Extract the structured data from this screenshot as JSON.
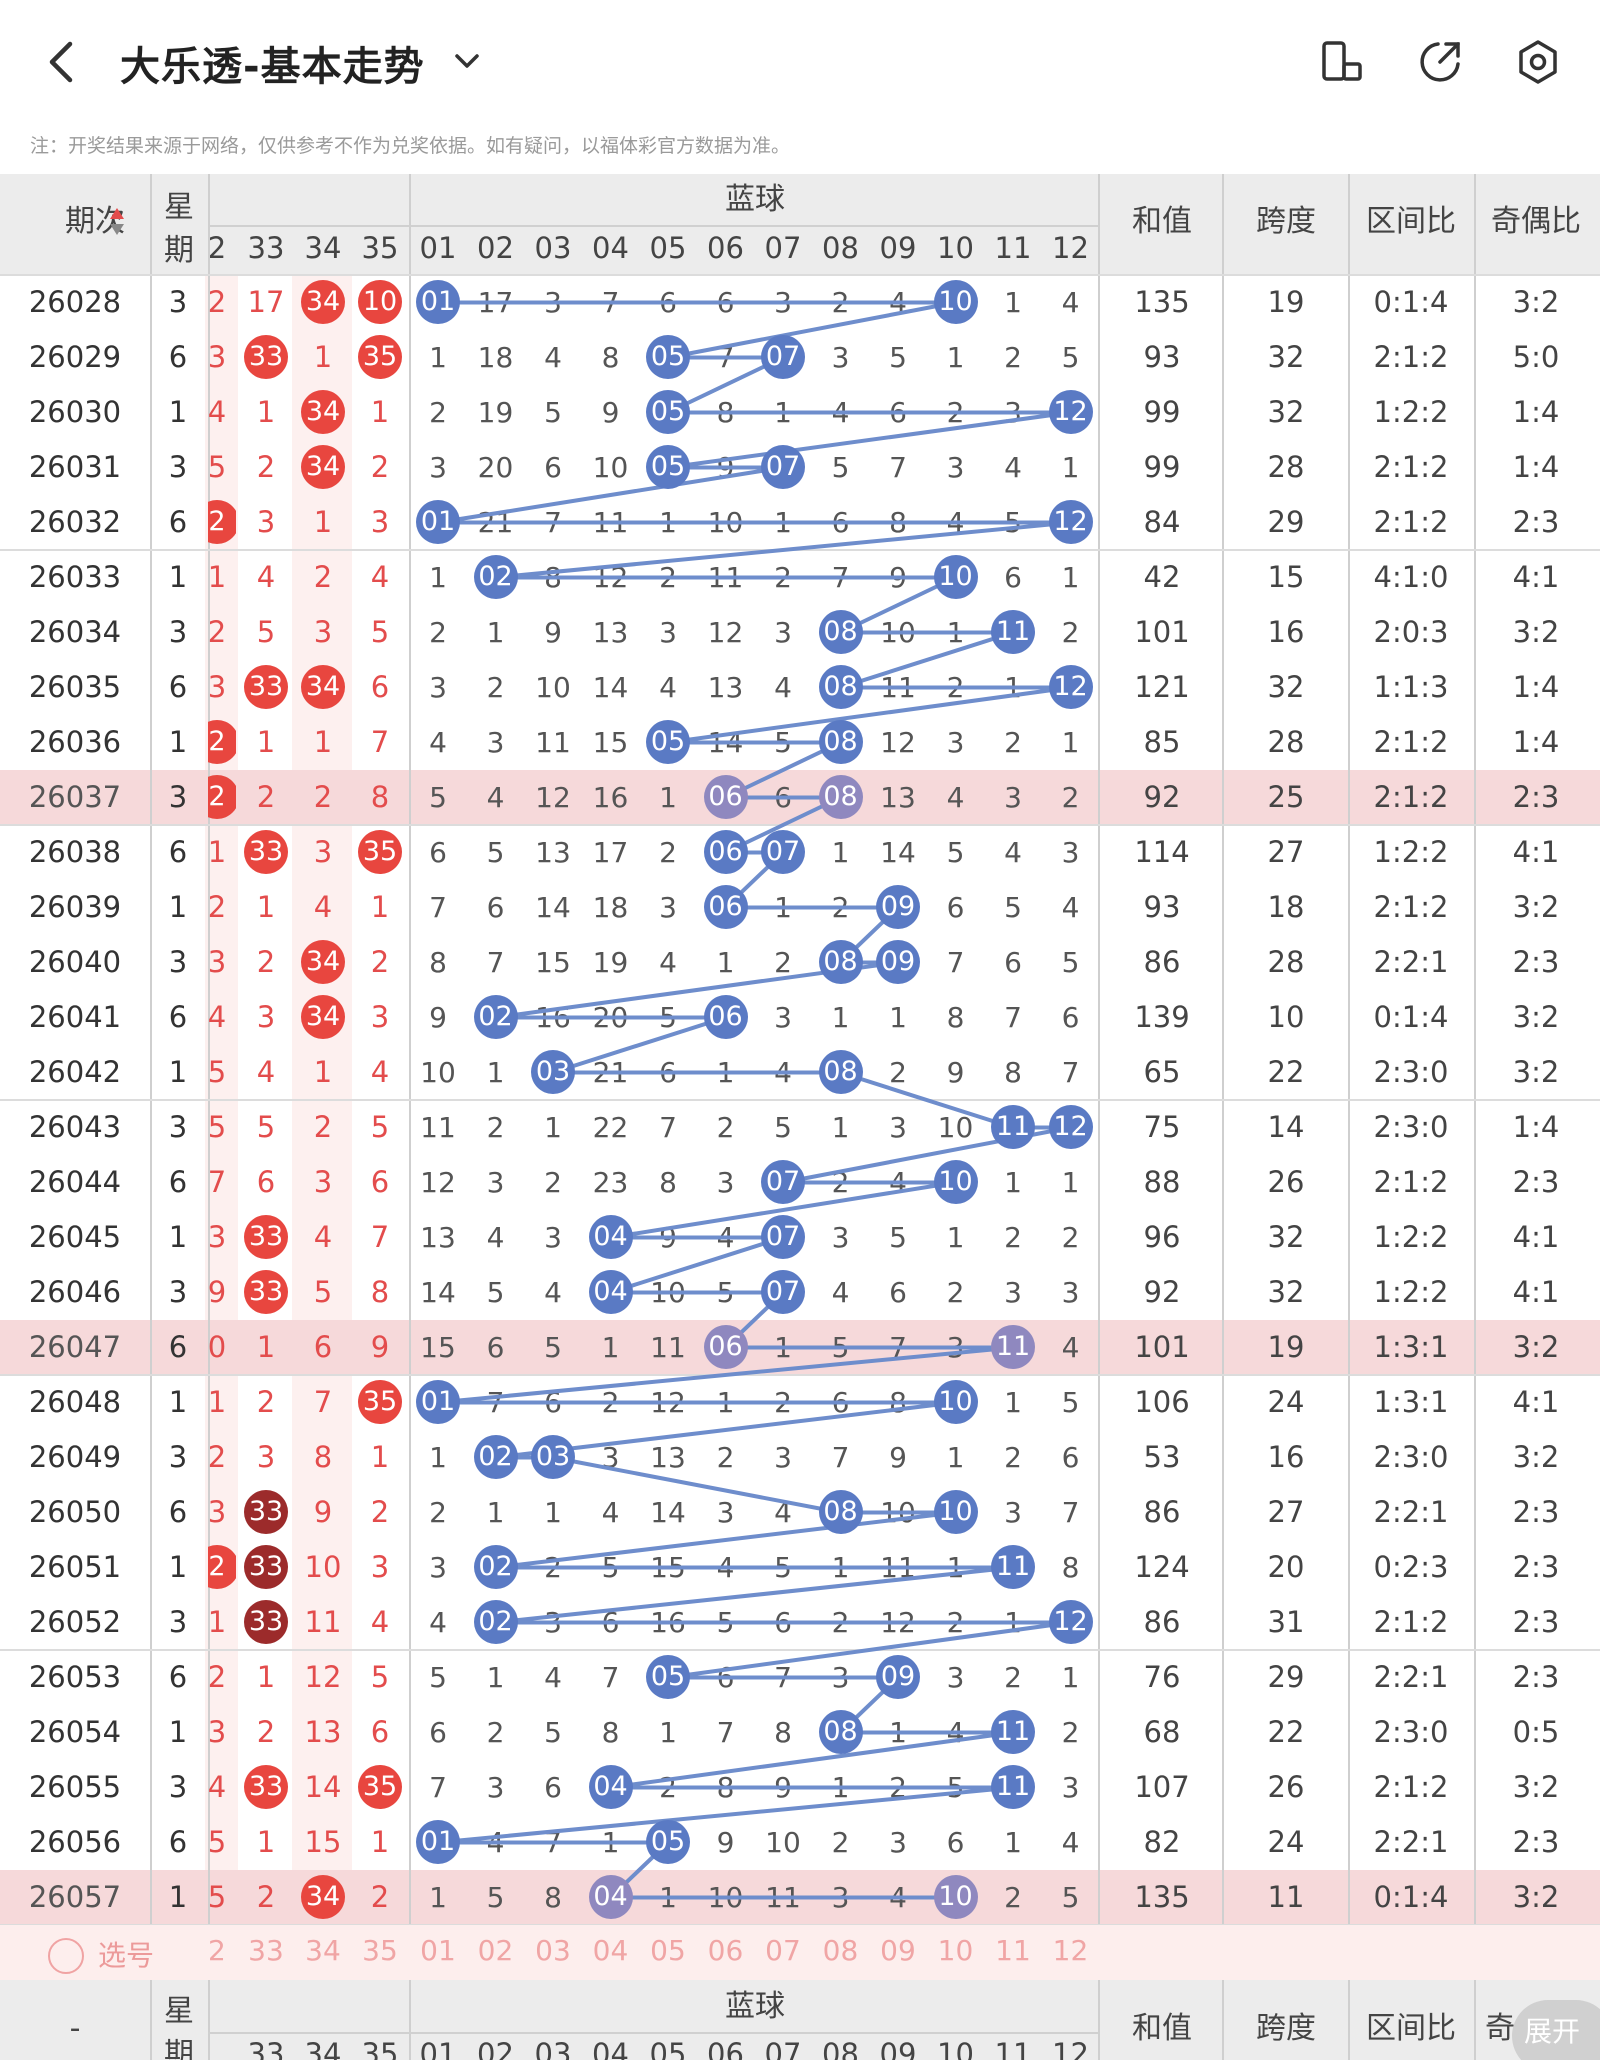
{
  "page": {
    "title": "大乐透-基本走势",
    "notice": "注：开奖结果来源于网络，仅供参考不作为兑奖依据。如有疑问，以福体彩官方数据为准。"
  },
  "icons": {
    "back": "chevron-left-icon",
    "title_dropdown": "chevron-down-icon",
    "layout": "rotate-screen-icon",
    "share": "share-icon",
    "settings": "settings-icon"
  },
  "colors": {
    "red_ball": "#e8463f",
    "dark_red_ball": "#9c2b2b",
    "blue_ball": "#5a7ac4",
    "blue_line": "#6e8dcc",
    "red_text": "#e34c4c",
    "highlight_row": "#f6d9da",
    "odd_red_col": "#fdf0ef",
    "header_bg": "#ececec"
  },
  "header": {
    "issue": "期次",
    "week": "星期",
    "blue_title": "蓝球",
    "sum": "和值",
    "span": "跨度",
    "zone_ratio": "区间比",
    "odd_even": "奇偶比",
    "red_cols": [
      "2",
      "33",
      "34",
      "35"
    ],
    "blue_cols": [
      "01",
      "02",
      "03",
      "04",
      "05",
      "06",
      "07",
      "08",
      "09",
      "10",
      "11",
      "12"
    ]
  },
  "rows": [
    {
      "issue": "26028",
      "week": "3",
      "r": [
        "2",
        "17",
        "34",
        "10"
      ],
      "b": [
        1,
        10
      ],
      "bv": [
        "01",
        "17",
        "3",
        "7",
        "6",
        "6",
        "3",
        "2",
        "4",
        "10",
        "1",
        "4"
      ],
      "sum": "135",
      "span": "19",
      "zone": "0:1:4",
      "oe": "3:2"
    },
    {
      "issue": "26029",
      "week": "6",
      "r": [
        "3",
        "33",
        "1",
        "35"
      ],
      "b": [
        5,
        7
      ],
      "bv": [
        "1",
        "18",
        "4",
        "8",
        "05",
        "7",
        "07",
        "3",
        "5",
        "1",
        "2",
        "5"
      ],
      "sum": "93",
      "span": "32",
      "zone": "2:1:2",
      "oe": "5:0"
    },
    {
      "issue": "26030",
      "week": "1",
      "r": [
        "4",
        "1",
        "34",
        "1"
      ],
      "b": [
        5,
        12
      ],
      "bv": [
        "2",
        "19",
        "5",
        "9",
        "05",
        "8",
        "1",
        "4",
        "6",
        "2",
        "3",
        "12"
      ],
      "sum": "99",
      "span": "32",
      "zone": "1:2:2",
      "oe": "1:4"
    },
    {
      "issue": "26031",
      "week": "3",
      "r": [
        "5",
        "2",
        "34",
        "2"
      ],
      "b": [
        5,
        7
      ],
      "bv": [
        "3",
        "20",
        "6",
        "10",
        "05",
        "9",
        "07",
        "5",
        "7",
        "3",
        "4",
        "1"
      ],
      "sum": "99",
      "span": "28",
      "zone": "2:1:2",
      "oe": "1:4"
    },
    {
      "issue": "26032",
      "week": "6",
      "r": [
        "2",
        "3",
        "1",
        "3"
      ],
      "b": [
        1,
        12
      ],
      "bv": [
        "01",
        "21",
        "7",
        "11",
        "1",
        "10",
        "1",
        "6",
        "8",
        "4",
        "5",
        "12"
      ],
      "sum": "84",
      "span": "29",
      "zone": "2:1:2",
      "oe": "2:3"
    },
    {
      "issue": "26033",
      "week": "1",
      "r": [
        "1",
        "4",
        "2",
        "4"
      ],
      "b": [
        2,
        10
      ],
      "bv": [
        "1",
        "02",
        "8",
        "12",
        "2",
        "11",
        "2",
        "7",
        "9",
        "10",
        "6",
        "1"
      ],
      "sum": "42",
      "span": "15",
      "zone": "4:1:0",
      "oe": "4:1"
    },
    {
      "issue": "26034",
      "week": "3",
      "r": [
        "2",
        "5",
        "3",
        "5"
      ],
      "b": [
        8,
        11
      ],
      "bv": [
        "2",
        "1",
        "9",
        "13",
        "3",
        "12",
        "3",
        "08",
        "10",
        "1",
        "11",
        "2"
      ],
      "sum": "101",
      "span": "16",
      "zone": "2:0:3",
      "oe": "3:2"
    },
    {
      "issue": "26035",
      "week": "6",
      "r": [
        "3",
        "33",
        "34",
        "6"
      ],
      "b": [
        8,
        12
      ],
      "bv": [
        "3",
        "2",
        "10",
        "14",
        "4",
        "13",
        "4",
        "08",
        "11",
        "2",
        "1",
        "12"
      ],
      "sum": "121",
      "span": "32",
      "zone": "1:1:3",
      "oe": "1:4"
    },
    {
      "issue": "26036",
      "week": "1",
      "r": [
        "2",
        "1",
        "1",
        "7"
      ],
      "b": [
        5,
        8
      ],
      "bv": [
        "4",
        "3",
        "11",
        "15",
        "05",
        "14",
        "5",
        "08",
        "12",
        "3",
        "2",
        "1"
      ],
      "sum": "85",
      "span": "28",
      "zone": "2:1:2",
      "oe": "1:4"
    },
    {
      "issue": "26037",
      "week": "3",
      "r": [
        "2",
        "2",
        "2",
        "8"
      ],
      "b": [
        6,
        8
      ],
      "bv": [
        "5",
        "4",
        "12",
        "16",
        "1",
        "06",
        "6",
        "08",
        "13",
        "4",
        "3",
        "2"
      ],
      "sum": "92",
      "span": "25",
      "zone": "2:1:2",
      "oe": "2:3"
    },
    {
      "issue": "26038",
      "week": "6",
      "r": [
        "1",
        "33",
        "3",
        "35"
      ],
      "b": [
        6,
        7
      ],
      "bv": [
        "6",
        "5",
        "13",
        "17",
        "2",
        "06",
        "07",
        "1",
        "14",
        "5",
        "4",
        "3"
      ],
      "sum": "114",
      "span": "27",
      "zone": "1:2:2",
      "oe": "4:1"
    },
    {
      "issue": "26039",
      "week": "1",
      "r": [
        "2",
        "1",
        "4",
        "1"
      ],
      "b": [
        6,
        9
      ],
      "bv": [
        "7",
        "6",
        "14",
        "18",
        "3",
        "06",
        "1",
        "2",
        "09",
        "6",
        "5",
        "4"
      ],
      "sum": "93",
      "span": "18",
      "zone": "2:1:2",
      "oe": "3:2"
    },
    {
      "issue": "26040",
      "week": "3",
      "r": [
        "3",
        "2",
        "34",
        "2"
      ],
      "b": [
        8,
        9
      ],
      "bv": [
        "8",
        "7",
        "15",
        "19",
        "4",
        "1",
        "2",
        "08",
        "09",
        "7",
        "6",
        "5"
      ],
      "sum": "86",
      "span": "28",
      "zone": "2:2:1",
      "oe": "2:3"
    },
    {
      "issue": "26041",
      "week": "6",
      "r": [
        "4",
        "3",
        "34",
        "3"
      ],
      "b": [
        2,
        6
      ],
      "bv": [
        "9",
        "02",
        "16",
        "20",
        "5",
        "06",
        "3",
        "1",
        "1",
        "8",
        "7",
        "6"
      ],
      "sum": "139",
      "span": "10",
      "zone": "0:1:4",
      "oe": "3:2"
    },
    {
      "issue": "26042",
      "week": "1",
      "r": [
        "5",
        "4",
        "1",
        "4"
      ],
      "b": [
        3,
        8
      ],
      "bv": [
        "10",
        "1",
        "03",
        "21",
        "6",
        "1",
        "4",
        "08",
        "2",
        "9",
        "8",
        "7"
      ],
      "sum": "65",
      "span": "22",
      "zone": "2:3:0",
      "oe": "3:2"
    },
    {
      "issue": "26043",
      "week": "3",
      "r": [
        "5",
        "5",
        "2",
        "5"
      ],
      "b": [
        11,
        12
      ],
      "bv": [
        "11",
        "2",
        "1",
        "22",
        "7",
        "2",
        "5",
        "1",
        "3",
        "10",
        "11",
        "12"
      ],
      "sum": "75",
      "span": "14",
      "zone": "2:3:0",
      "oe": "1:4"
    },
    {
      "issue": "26044",
      "week": "6",
      "r": [
        "7",
        "6",
        "3",
        "6"
      ],
      "b": [
        7,
        10
      ],
      "bv": [
        "12",
        "3",
        "2",
        "23",
        "8",
        "3",
        "07",
        "2",
        "4",
        "10",
        "1",
        "1"
      ],
      "sum": "88",
      "span": "26",
      "zone": "2:1:2",
      "oe": "2:3"
    },
    {
      "issue": "26045",
      "week": "1",
      "r": [
        "3",
        "33",
        "4",
        "7"
      ],
      "b": [
        4,
        7
      ],
      "bv": [
        "13",
        "4",
        "3",
        "04",
        "9",
        "4",
        "07",
        "3",
        "5",
        "1",
        "2",
        "2"
      ],
      "sum": "96",
      "span": "32",
      "zone": "1:2:2",
      "oe": "4:1"
    },
    {
      "issue": "26046",
      "week": "3",
      "r": [
        "9",
        "33",
        "5",
        "8"
      ],
      "b": [
        4,
        7
      ],
      "bv": [
        "14",
        "5",
        "4",
        "04",
        "10",
        "5",
        "07",
        "4",
        "6",
        "2",
        "3",
        "3"
      ],
      "sum": "92",
      "span": "32",
      "zone": "1:2:2",
      "oe": "4:1"
    },
    {
      "issue": "26047",
      "week": "6",
      "r": [
        "0",
        "1",
        "6",
        "9"
      ],
      "b": [
        6,
        11
      ],
      "bv": [
        "15",
        "6",
        "5",
        "1",
        "11",
        "06",
        "1",
        "5",
        "7",
        "3",
        "11",
        "4"
      ],
      "sum": "101",
      "span": "19",
      "zone": "1:3:1",
      "oe": "3:2"
    },
    {
      "issue": "26048",
      "week": "1",
      "r": [
        "1",
        "2",
        "7",
        "35"
      ],
      "b": [
        1,
        10
      ],
      "bv": [
        "01",
        "7",
        "6",
        "2",
        "12",
        "1",
        "2",
        "6",
        "8",
        "10",
        "1",
        "5"
      ],
      "sum": "106",
      "span": "24",
      "zone": "1:3:1",
      "oe": "4:1"
    },
    {
      "issue": "26049",
      "week": "3",
      "r": [
        "2",
        "3",
        "8",
        "1"
      ],
      "b": [
        2,
        3
      ],
      "bv": [
        "1",
        "02",
        "03",
        "3",
        "13",
        "2",
        "3",
        "7",
        "9",
        "1",
        "2",
        "6"
      ],
      "sum": "53",
      "span": "16",
      "zone": "2:3:0",
      "oe": "3:2"
    },
    {
      "issue": "26050",
      "week": "6",
      "r": [
        "3",
        "33",
        "9",
        "2"
      ],
      "b": [
        8,
        10
      ],
      "bv": [
        "2",
        "1",
        "1",
        "4",
        "14",
        "3",
        "4",
        "08",
        "10",
        "10",
        "3",
        "7"
      ],
      "sum": "86",
      "span": "27",
      "zone": "2:2:1",
      "oe": "2:3"
    },
    {
      "issue": "26051",
      "week": "1",
      "r": [
        "2",
        "33",
        "10",
        "3"
      ],
      "b": [
        2,
        11
      ],
      "bv": [
        "3",
        "02",
        "2",
        "5",
        "15",
        "4",
        "5",
        "1",
        "11",
        "1",
        "11",
        "8"
      ],
      "sum": "124",
      "span": "20",
      "zone": "0:2:3",
      "oe": "2:3"
    },
    {
      "issue": "26052",
      "week": "3",
      "r": [
        "1",
        "33",
        "11",
        "4"
      ],
      "b": [
        2,
        12
      ],
      "bv": [
        "4",
        "02",
        "3",
        "6",
        "16",
        "5",
        "6",
        "2",
        "12",
        "2",
        "1",
        "12"
      ],
      "sum": "86",
      "span": "31",
      "zone": "2:1:2",
      "oe": "2:3"
    },
    {
      "issue": "26053",
      "week": "6",
      "r": [
        "2",
        "1",
        "12",
        "5"
      ],
      "b": [
        5,
        9
      ],
      "bv": [
        "5",
        "1",
        "4",
        "7",
        "05",
        "6",
        "7",
        "3",
        "09",
        "3",
        "2",
        "1"
      ],
      "sum": "76",
      "span": "29",
      "zone": "2:2:1",
      "oe": "2:3"
    },
    {
      "issue": "26054",
      "week": "1",
      "r": [
        "3",
        "2",
        "13",
        "6"
      ],
      "b": [
        8,
        11
      ],
      "bv": [
        "6",
        "2",
        "5",
        "8",
        "1",
        "7",
        "8",
        "08",
        "1",
        "4",
        "11",
        "2"
      ],
      "sum": "68",
      "span": "22",
      "zone": "2:3:0",
      "oe": "0:5"
    },
    {
      "issue": "26055",
      "week": "3",
      "r": [
        "4",
        "33",
        "14",
        "35"
      ],
      "b": [
        4,
        11
      ],
      "bv": [
        "7",
        "3",
        "6",
        "04",
        "2",
        "8",
        "9",
        "1",
        "2",
        "5",
        "11",
        "3"
      ],
      "sum": "107",
      "span": "26",
      "zone": "2:1:2",
      "oe": "3:2"
    },
    {
      "issue": "26056",
      "week": "6",
      "r": [
        "5",
        "1",
        "15",
        "1"
      ],
      "b": [
        1,
        5
      ],
      "bv": [
        "01",
        "4",
        "7",
        "1",
        "05",
        "9",
        "10",
        "2",
        "3",
        "6",
        "1",
        "4"
      ],
      "sum": "82",
      "span": "24",
      "zone": "2:2:1",
      "oe": "2:3"
    },
    {
      "issue": "26057",
      "week": "1",
      "r": [
        "5",
        "2",
        "34",
        "2"
      ],
      "b": [
        4,
        10
      ],
      "bv": [
        "1",
        "5",
        "8",
        "04",
        "1",
        "10",
        "11",
        "3",
        "4",
        "10",
        "2",
        "5"
      ],
      "sum": "135",
      "span": "11",
      "zone": "0:1:4",
      "oe": "3:2"
    }
  ],
  "red_balls": {
    "0": [
      [
        2,
        "red"
      ],
      [
        3,
        "red"
      ]
    ],
    "1": [
      [
        1,
        "red"
      ],
      [
        3,
        "red"
      ]
    ],
    "2": [
      [
        2,
        "red"
      ]
    ],
    "3": [
      [
        2,
        "red"
      ]
    ],
    "4": [
      [
        0,
        "red"
      ]
    ],
    "7": [
      [
        1,
        "red"
      ],
      [
        2,
        "red"
      ]
    ],
    "8": [
      [
        0,
        "red"
      ]
    ],
    "9": [
      [
        0,
        "red"
      ]
    ],
    "10": [
      [
        1,
        "red"
      ],
      [
        3,
        "red"
      ]
    ],
    "12": [
      [
        2,
        "red"
      ]
    ],
    "13": [
      [
        2,
        "red"
      ]
    ],
    "17": [
      [
        1,
        "red"
      ]
    ],
    "18": [
      [
        1,
        "red"
      ]
    ],
    "20": [
      [
        3,
        "red"
      ]
    ],
    "22": [
      [
        1,
        "dark"
      ]
    ],
    "23": [
      [
        0,
        "red"
      ],
      [
        1,
        "dark"
      ]
    ],
    "24": [
      [
        1,
        "dark"
      ]
    ],
    "27": [
      [
        1,
        "red"
      ],
      [
        3,
        "red"
      ]
    ],
    "29": [
      [
        2,
        "red"
      ]
    ]
  },
  "highlight_rows": [
    9,
    19,
    29
  ],
  "pick": {
    "label": "选号",
    "red": [
      "2",
      "33",
      "34",
      "35"
    ],
    "blue": [
      "01",
      "02",
      "03",
      "04",
      "05",
      "06",
      "07",
      "08",
      "09",
      "10",
      "11",
      "12"
    ]
  },
  "footer": {
    "issue": "-",
    "week": "星期",
    "blue_title": "蓝球",
    "sum": "和值",
    "span": "跨度",
    "zone_ratio": "区间比",
    "odd_even": "奇",
    "expand": "展开"
  }
}
